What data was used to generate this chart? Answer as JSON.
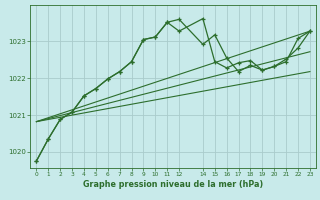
{
  "bg_color": "#c8eaea",
  "grid_color": "#aacccc",
  "line_color": "#2d6e2d",
  "title": "Graphe pression niveau de la mer (hPa)",
  "xlim": [
    -0.5,
    23.5
  ],
  "ylim": [
    1019.55,
    1024.0
  ],
  "yticks": [
    1020,
    1021,
    1022,
    1023
  ],
  "xtick_positions": [
    0,
    1,
    2,
    3,
    4,
    5,
    6,
    7,
    8,
    9,
    10,
    11,
    12,
    14,
    15,
    16,
    17,
    18,
    19,
    20,
    21,
    22,
    23
  ],
  "jagged_x": [
    0,
    1,
    2,
    3,
    4,
    5,
    6,
    7,
    8,
    9,
    10,
    11,
    12,
    14,
    15,
    16,
    17,
    18,
    19,
    20,
    21,
    22,
    23
  ],
  "jagged_y1": [
    1019.75,
    1020.35,
    1020.88,
    1021.08,
    1021.52,
    1021.72,
    1021.98,
    1022.18,
    1022.45,
    1023.05,
    1023.12,
    1023.52,
    1023.6,
    1022.92,
    1023.18,
    1022.55,
    1022.18,
    1022.35,
    1022.22,
    1022.32,
    1022.45,
    1023.08,
    1023.28
  ],
  "jagged_y2": [
    1019.75,
    1020.35,
    1020.88,
    1021.08,
    1021.52,
    1021.72,
    1021.98,
    1022.18,
    1022.45,
    1023.05,
    1023.12,
    1023.52,
    1023.28,
    1023.62,
    1022.45,
    1022.28,
    1022.42,
    1022.48,
    1022.22,
    1022.32,
    1022.52,
    1022.82,
    1023.28
  ],
  "straight_lines": [
    {
      "x0": 0,
      "y0": 1020.82,
      "x1": 23,
      "y1": 1023.28
    },
    {
      "x0": 0,
      "y0": 1020.82,
      "x1": 23,
      "y1": 1022.72
    },
    {
      "x0": 0,
      "y0": 1020.82,
      "x1": 23,
      "y1": 1022.18
    }
  ]
}
